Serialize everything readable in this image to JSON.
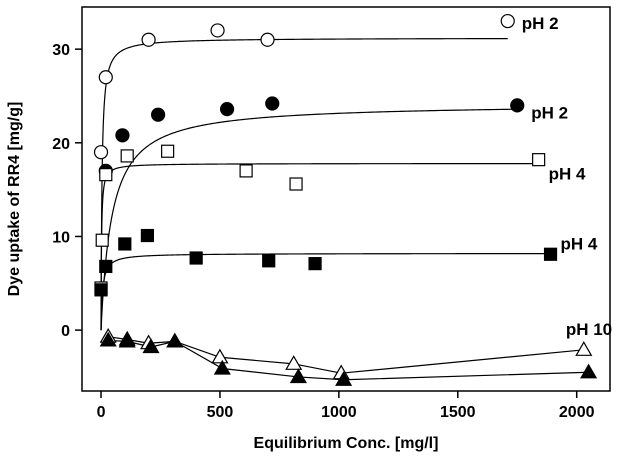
{
  "chart_data": {
    "type": "scatter",
    "title": "",
    "xlabel": "Equilibrium Conc. [mg/l]",
    "ylabel": "Dye uptake of RR4 [mg/g]",
    "xlim": [
      -80,
      2140
    ],
    "ylim": [
      -6.5,
      34.5
    ],
    "xticks": [
      0,
      500,
      1000,
      1500,
      2000
    ],
    "yticks": [
      0,
      10,
      20,
      30
    ],
    "legend": "none; series labeled directly at line ends",
    "series": [
      {
        "name": "pH 2",
        "marker": "circle-open",
        "points": [
          [
            0,
            19
          ],
          [
            20,
            27
          ],
          [
            200,
            31
          ],
          [
            490,
            32
          ],
          [
            700,
            31
          ],
          [
            1710,
            33
          ]
        ],
        "fit": "langmuir",
        "qmax": 31.2,
        "K": 0.25
      },
      {
        "name": "pH 2",
        "marker": "circle-filled",
        "points": [
          [
            20,
            17
          ],
          [
            90,
            20.8
          ],
          [
            240,
            23
          ],
          [
            530,
            23.6
          ],
          [
            720,
            24.2
          ],
          [
            1750,
            24
          ]
        ],
        "fit": "langmuir",
        "qmax": 24.2,
        "K": 0.022
      },
      {
        "name": "pH 4",
        "marker": "square-open",
        "points": [
          [
            0,
            4.5
          ],
          [
            5,
            9.6
          ],
          [
            20,
            16.6
          ],
          [
            110,
            18.6
          ],
          [
            280,
            19.1
          ],
          [
            610,
            17
          ],
          [
            820,
            15.6
          ],
          [
            1840,
            18.2
          ]
        ],
        "fit": "langmuir",
        "qmax": 17.8,
        "K": 0.5
      },
      {
        "name": "pH 4",
        "marker": "square-filled",
        "points": [
          [
            0,
            4.3
          ],
          [
            20,
            6.8
          ],
          [
            100,
            9.2
          ],
          [
            195,
            10.1
          ],
          [
            400,
            7.7
          ],
          [
            705,
            7.4
          ],
          [
            900,
            7.1
          ],
          [
            1890,
            8.1
          ]
        ],
        "fit": "langmuir",
        "qmax": 8.2,
        "K": 0.15
      },
      {
        "name": "pH 10",
        "marker": "triangle-open",
        "points": [
          [
            30,
            -0.7
          ],
          [
            110,
            -1
          ],
          [
            200,
            -1.4
          ],
          [
            310,
            -1.2
          ],
          [
            500,
            -2.9
          ],
          [
            810,
            -3.6
          ],
          [
            1010,
            -4.6
          ],
          [
            2030,
            -2.1
          ]
        ]
      },
      {
        "name": "",
        "marker": "triangle-filled",
        "points": [
          [
            30,
            -1.1
          ],
          [
            110,
            -1.2
          ],
          [
            210,
            -1.8
          ],
          [
            310,
            -1.2
          ],
          [
            510,
            -4.1
          ],
          [
            830,
            -5
          ],
          [
            1020,
            -5.3
          ],
          [
            2050,
            -4.5
          ]
        ]
      }
    ]
  }
}
